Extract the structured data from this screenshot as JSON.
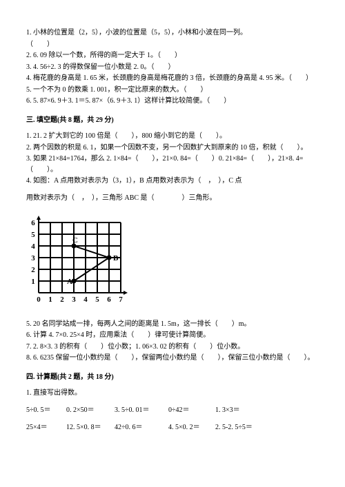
{
  "judge": {
    "q1": "1. 小林的位置是（2，5），小波的位置是（5，5），小林和小波在同一列。",
    "q1b": "（　　）",
    "q2": "2. 6. 09 除以一个数，所得的商一定大于 1。（　　）",
    "q3": "3. 4. 56÷2. 3 的得数保留一位小数是 2. 0。（　　）",
    "q4": "4. 梅花鹿的身高是 1. 65 米，长颈鹿的身高是梅花鹿的 3 倍，长颈鹿的身高是 4. 95 米。（　　）",
    "q5": "5. 一个不为 0 的数乘 1. 001，积一定比原来的数大。（　　）",
    "q6": "6. 5. 87×6. 9＋3. 1＝5. 87×（6. 9＋3. 1）这样计算比较简便。（　　）"
  },
  "section3": {
    "title": "三. 填空题(共 8 题，共 29 分)",
    "q1": "1. 21. 2 扩大到它的 100 倍是（　　），800 缩小到它的是（　　）。",
    "q2": "2. 两个因数的积是 6. 1，如果一个因数不变，另一个因数扩大到原来的 10 倍，积就（　　）。",
    "q3": "3. 如果 21×84=1764，那么 2. 1×84=（　　），21×0. 84=（　　）0. 21×84=（　　），21×8. 4=（　　）。",
    "q4": "4. 如图：A 点用数对表示为（3，1），B 点用数对表示为（　，　），C 点",
    "q4b": "用数对表示为（　，　），三角形 ABC 是（　　　　）三角形。",
    "q5": "5. 20 名同学站成一排，每两人之间的距离是 1. 5m，这一排长（　　）m。",
    "q6": "6. 计算 4. 7×0. 25×4 时，应用乘法（　　）律可使计算简便。",
    "q7": "7. 2. 8×3. 3 的积有（　　）位小数；1. 06×3. 02 的积有（　　）位小数。",
    "q8": "8. 6. 6235 保留一位小数约是（　　），保留两位小数约是（　　），保留三位小数约是（　　）。"
  },
  "chart": {
    "grid_size": 7,
    "grid_color": "#000000",
    "line_width": 2,
    "background": "#ffffff",
    "x_ticks": [
      "0",
      "1",
      "2",
      "3",
      "4",
      "5",
      "6",
      "7"
    ],
    "y_ticks": [
      "1",
      "2",
      "3",
      "4",
      "5",
      "6"
    ],
    "points": {
      "A": {
        "x": 3,
        "y": 1,
        "label": "A"
      },
      "B": {
        "x": 6,
        "y": 3,
        "label": "B"
      },
      "C": {
        "x": 3,
        "y": 4,
        "label": "C"
      }
    },
    "triangle_color": "#000000",
    "axis_font_size": 11
  },
  "section4": {
    "title": "四. 计算题(共 2 题，共 18 分)",
    "q1": "1. 直接写出得数。",
    "row1": [
      "5÷0. 5＝",
      "0. 2×50＝",
      "3. 5÷0. 01＝",
      "0÷42＝",
      "1. 3×3＝"
    ],
    "row2": [
      "25×4＝",
      "12. 5×0. 8＝",
      "42÷0. 6＝",
      "4. 5×0. 2＝",
      "2. 5-2. 5÷5＝"
    ]
  }
}
